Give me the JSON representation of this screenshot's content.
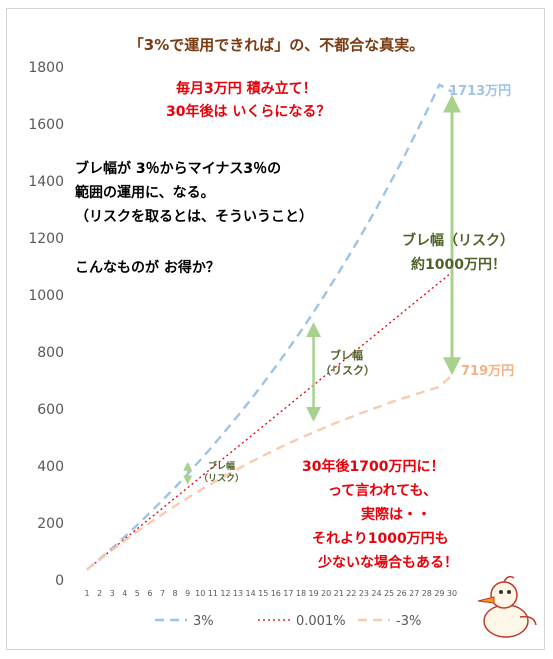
{
  "chart_data": {
    "type": "line",
    "title": "「3%で運用できれば」の、不都合な真実。",
    "x": [
      1,
      2,
      3,
      4,
      5,
      6,
      7,
      8,
      9,
      10,
      11,
      12,
      13,
      14,
      15,
      16,
      17,
      18,
      19,
      20,
      21,
      22,
      23,
      24,
      25,
      26,
      27,
      28,
      29,
      30
    ],
    "ylim": [
      0,
      1800
    ],
    "yticks": [
      0,
      200,
      400,
      600,
      800,
      1000,
      1200,
      1400,
      1600,
      1800
    ],
    "series": [
      {
        "name": "3%",
        "color": "#9dc3e6",
        "dash": "dashed",
        "values": [
          37,
          74,
          112,
          152,
          193,
          236,
          280,
          325,
          372,
          421,
          471,
          523,
          577,
          632,
          690,
          749,
          811,
          874,
          940,
          1008,
          1079,
          1152,
          1227,
          1305,
          1386,
          1469,
          1556,
          1645,
          1738,
          1713
        ]
      },
      {
        "name": "0.001%",
        "color": "#e8000b",
        "dash": "dotted",
        "values": [
          36,
          72,
          108,
          144,
          180,
          216,
          252,
          288,
          324,
          360,
          396,
          432,
          468,
          504,
          540,
          576,
          612,
          648,
          684,
          720,
          756,
          792,
          828,
          864,
          900,
          936,
          972,
          1008,
          1044,
          1080
        ]
      },
      {
        "name": "-3%",
        "color": "#f8cbad",
        "dash": "dashed",
        "values": [
          36,
          71,
          105,
          138,
          170,
          201,
          231,
          260,
          288,
          315,
          341,
          366,
          390,
          414,
          436,
          458,
          479,
          499,
          518,
          537,
          555,
          572,
          589,
          605,
          621,
          636,
          650,
          664,
          678,
          719
        ]
      }
    ],
    "value_labels": {
      "top": "1713万円",
      "bottom": "719万円"
    },
    "annotations": {
      "red_question": [
        "毎月3万円 積み立て！",
        "30年後は いくらになる？"
      ],
      "black_note": [
        "ブレ幅が 3％からマイナス3％の",
        "範囲の運用に、なる。",
        "（リスクを取るとは、そういうこと）",
        "",
        "こんなものが お得か？"
      ],
      "risk_big": [
        "ブレ幅（リスク）",
        "約1000万円！"
      ],
      "risk_mid": [
        "ブレ幅",
        "（リスク）"
      ],
      "risk_small": [
        "ブレ幅",
        "（リスク）"
      ],
      "red_warning": [
        "30年後1700万円に！",
        "って言われても、",
        "実際は・・",
        "それより1000万円も",
        "少ないな場合もある！"
      ]
    },
    "legend_position": "bottom"
  },
  "colors": {
    "title": "#7a3b12",
    "arrow": "#a9d18e"
  }
}
